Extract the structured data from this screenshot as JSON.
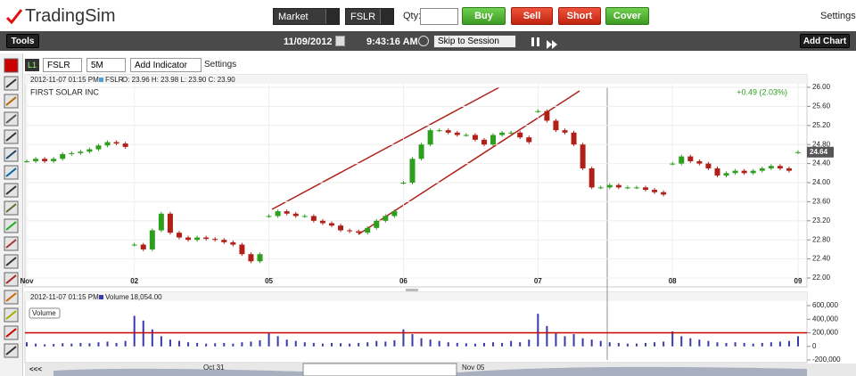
{
  "topbar": {
    "logo": "TradingSim",
    "order_type": "Market",
    "symbol": "FSLR",
    "qty_label": "Qty:",
    "buttons": [
      "Buy",
      "Sell",
      "Short",
      "Cover"
    ],
    "settings": "Settings"
  },
  "toolbar": {
    "tools": "Tools",
    "date": "11/09/2012",
    "time": "9:43:16 AM",
    "skip": "Skip to Session",
    "add_chart": "Add Chart"
  },
  "chart_header": {
    "level": "L1",
    "symbol": "FSLR",
    "interval": "5M",
    "add_indicator": "Add Indicator",
    "settings": "Settings"
  },
  "chart_data": [
    {
      "type": "candlestick",
      "info": "2012-11-07 01:15 PM",
      "info_symbol": "FSLR",
      "ohlc_text": "O: 23.96  H: 23.98  L: 23.90  C: 23.90",
      "title": "FIRST SOLAR INC",
      "change": "+0.49 (2.03%)",
      "last": {
        "value": 24.64,
        "label": "24.64"
      },
      "up_color": "#2e9e1f",
      "down_color": "#b02018",
      "categories": [
        "Nov",
        null,
        null,
        null,
        null,
        null,
        null,
        null,
        null,
        null,
        null,
        null,
        "02",
        null,
        null,
        null,
        null,
        null,
        null,
        null,
        null,
        null,
        null,
        null,
        null,
        null,
        null,
        "05",
        null,
        null,
        null,
        null,
        null,
        null,
        null,
        null,
        null,
        null,
        null,
        null,
        null,
        null,
        "06",
        null,
        null,
        null,
        null,
        null,
        null,
        null,
        null,
        null,
        null,
        null,
        null,
        null,
        null,
        "07",
        null,
        null,
        null,
        null,
        null,
        null,
        null,
        null,
        null,
        null,
        null,
        null,
        null,
        null,
        "08",
        null,
        null,
        null,
        null,
        null,
        null,
        null,
        null,
        null,
        null,
        null,
        null,
        null,
        "09"
      ],
      "values": [
        24.45,
        24.5,
        24.45,
        24.5,
        24.6,
        24.62,
        24.65,
        24.7,
        24.78,
        24.85,
        24.82,
        24.75,
        22.7,
        22.6,
        23.0,
        23.35,
        22.95,
        22.85,
        22.8,
        22.85,
        22.82,
        22.8,
        22.75,
        22.7,
        22.5,
        22.35,
        22.5,
        23.3,
        23.4,
        23.35,
        23.3,
        23.3,
        23.2,
        23.15,
        23.1,
        23.0,
        22.98,
        22.95,
        23.05,
        23.2,
        23.3,
        23.4,
        24.0,
        24.5,
        24.8,
        25.1,
        25.1,
        25.05,
        25.0,
        25.0,
        24.9,
        24.8,
        25.0,
        25.05,
        25.05,
        24.95,
        24.85,
        25.5,
        25.3,
        25.1,
        25.05,
        24.8,
        24.3,
        23.9,
        23.9,
        23.95,
        23.9,
        23.9,
        23.9,
        23.85,
        23.8,
        23.75,
        24.4,
        24.55,
        24.45,
        24.4,
        24.3,
        24.15,
        24.2,
        24.25,
        24.2,
        24.25,
        24.3,
        24.35,
        24.3,
        24.25,
        24.64
      ],
      "ylim": [
        22,
        26
      ],
      "yticks": [
        {
          "value": 26,
          "label": "26.00"
        },
        {
          "value": 25.6,
          "label": "25.60"
        },
        {
          "value": 25.2,
          "label": "25.20"
        },
        {
          "value": 24.8,
          "label": "24.80"
        },
        {
          "value": 24.4,
          "label": "24.40"
        },
        {
          "value": 24,
          "label": "24.00"
        },
        {
          "value": 23.6,
          "label": "23.60"
        },
        {
          "value": 23.2,
          "label": "23.20"
        },
        {
          "value": 22.8,
          "label": "22.80"
        },
        {
          "value": 22.4,
          "label": "22.40"
        },
        {
          "value": 22,
          "label": "22.00"
        }
      ],
      "grid": true
    },
    {
      "type": "bar",
      "info": "2012-11-07 01:15 PM",
      "series_name": "Volume",
      "value_text": "18,054.00",
      "label": "Volume",
      "color": "#3a3aa8",
      "values": [
        60000,
        40000,
        30000,
        35000,
        45000,
        40000,
        50000,
        45000,
        60000,
        70000,
        50000,
        80000,
        450000,
        380000,
        250000,
        150000,
        100000,
        80000,
        60000,
        50000,
        40000,
        45000,
        50000,
        40000,
        60000,
        70000,
        90000,
        200000,
        150000,
        100000,
        80000,
        60000,
        50000,
        40000,
        50000,
        45000,
        40000,
        50000,
        60000,
        80000,
        70000,
        90000,
        250000,
        180000,
        120000,
        100000,
        80000,
        60000,
        50000,
        45000,
        40000,
        50000,
        60000,
        50000,
        80000,
        60000,
        100000,
        480000,
        300000,
        200000,
        150000,
        180000,
        120000,
        100000,
        80000,
        60000,
        50000,
        40000,
        40000,
        50000,
        60000,
        70000,
        220000,
        150000,
        120000,
        100000,
        80000,
        60000,
        50000,
        60000,
        50000,
        40000,
        50000,
        60000,
        70000,
        80000,
        150000
      ],
      "ylim": [
        -200000,
        600000
      ],
      "yticks": [
        {
          "value": 600000,
          "label": "600,000"
        },
        {
          "value": 400000,
          "label": "400,000"
        },
        {
          "value": 200000,
          "label": "200,000"
        },
        0,
        {
          "value": -200000,
          "label": "-200,000"
        }
      ],
      "reference_line": 200000,
      "reference_color": "#cc0000"
    }
  ],
  "navigator": {
    "back": "<<<",
    "dates": [
      "Oct 31",
      "Nov 05"
    ]
  }
}
